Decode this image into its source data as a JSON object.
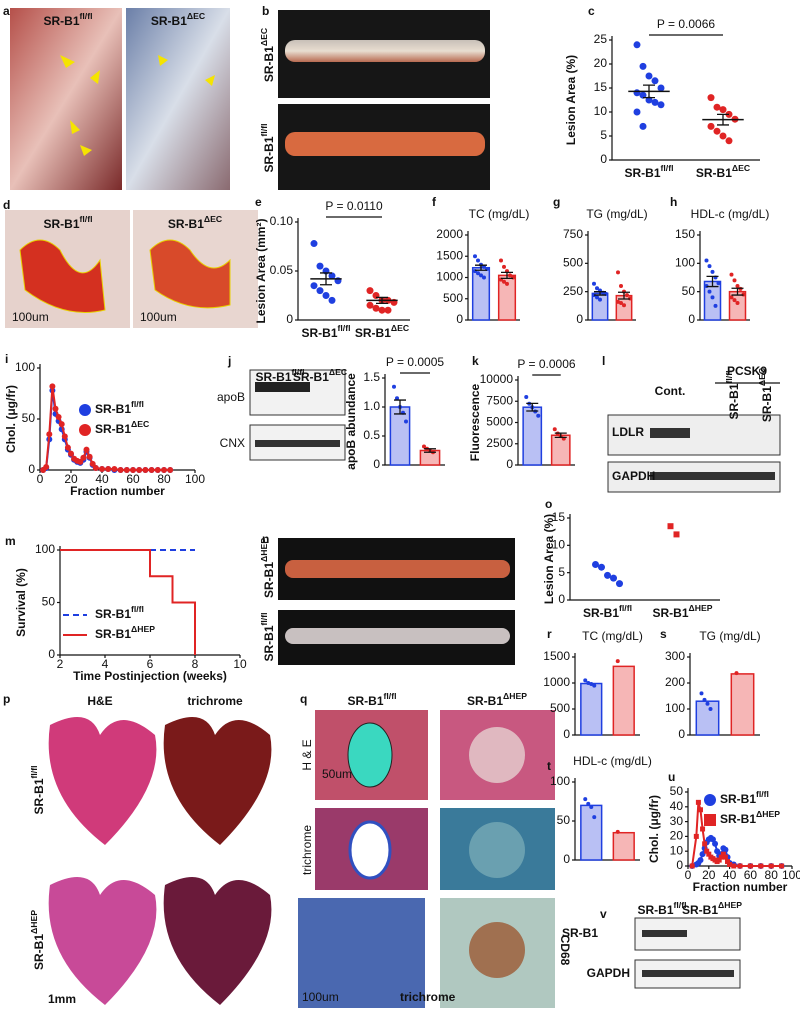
{
  "panels": {
    "a": {
      "panel": "a",
      "left": {
        "base": "SR-B1",
        "sup": "fl/fl"
      },
      "right": {
        "base": "SR-B1",
        "sup": "ΔEC"
      }
    },
    "b": {
      "panel": "b",
      "top": {
        "base": "SR-B1",
        "sup": "ΔEC"
      },
      "bottom": {
        "base": "SR-B1",
        "sup": "fl/fl"
      }
    },
    "d": {
      "panel": "d",
      "left": {
        "base": "SR-B1",
        "sup": "fl/fl"
      },
      "right": {
        "base": "SR-B1",
        "sup": "ΔEC"
      },
      "scale_left": "100um",
      "scale_right": "100um"
    },
    "j": {
      "panel": "j",
      "lanes": [
        {
          "base": "SR-B1",
          "sup": "fl/fl"
        },
        {
          "base": "SR-B1",
          "sup": "ΔEC"
        }
      ],
      "rows": [
        "apoB",
        "CNX"
      ]
    },
    "l": {
      "panel": "l",
      "group": "PCSK9",
      "lanes": [
        "Cont.",
        {
          "base": "SR-B1",
          "sup": "fl/fl"
        },
        {
          "base": "SR-B1",
          "sup": "ΔEC"
        }
      ],
      "rows": [
        "LDLR",
        "GAPDH"
      ]
    },
    "n": {
      "panel": "n",
      "top": {
        "base": "SR-B1",
        "sup": "ΔHEP"
      },
      "bottom": {
        "base": "SR-B1",
        "sup": "fl/fl"
      }
    },
    "p": {
      "panel": "p",
      "cols": [
        "H&E",
        "trichrome"
      ],
      "rows": [
        {
          "base": "SR-B1",
          "sup": "fl/fl"
        },
        {
          "base": "SR-B1",
          "sup": "ΔHEP"
        }
      ],
      "scale": "1mm"
    },
    "q": {
      "panel": "q",
      "cols": [
        {
          "base": "SR-B1",
          "sup": "fl/fl"
        },
        {
          "base": "SR-B1",
          "sup": "ΔHEP"
        }
      ],
      "rows": [
        "H & E",
        "trichrome"
      ],
      "scale": "50um",
      "side": "CD68",
      "inset_scale": "100um",
      "inset_label": "trichrome"
    },
    "v": {
      "panel": "v",
      "lanes": [
        {
          "base": "SR-B1",
          "sup": "fl/fl"
        },
        {
          "base": "SR-B1",
          "sup": "ΔHEP"
        }
      ],
      "rows": [
        "SR-B1",
        "GAPDH"
      ]
    }
  },
  "chart_data": [
    {
      "panel": "c",
      "type": "dot",
      "ylabel": "Lesion Area (%)",
      "annotation": "P = 0.0066",
      "categories": [
        {
          "base": "SR-B1",
          "sup": "fl/fl"
        },
        {
          "base": "SR-B1",
          "sup": "ΔEC"
        }
      ],
      "groups": [
        {
          "color": "#1f3fe0",
          "points": [
            24,
            19.5,
            17.5,
            16.5,
            15,
            14,
            13.5,
            12.5,
            12,
            11.5,
            10,
            7
          ],
          "mean": 14.3,
          "error": 1.3
        },
        {
          "color": "#e02424",
          "points": [
            13,
            11,
            10.5,
            9.5,
            8.5,
            7,
            6,
            5,
            4
          ],
          "mean": 8.4,
          "error": 1.1
        }
      ],
      "ylim": [
        0,
        25
      ],
      "yticks": [
        0,
        5,
        10,
        15,
        20,
        25
      ]
    },
    {
      "panel": "e",
      "type": "dot",
      "ylabel": "Lesion Area (mm²)",
      "annotation": "P = 0.0110",
      "categories": [
        {
          "base": "SR-B1",
          "sup": "fl/fl"
        },
        {
          "base": "SR-B1",
          "sup": "ΔEC"
        }
      ],
      "groups": [
        {
          "color": "#1f3fe0",
          "points": [
            0.078,
            0.055,
            0.05,
            0.045,
            0.04,
            0.035,
            0.03,
            0.025,
            0.02
          ],
          "mean": 0.042,
          "error": 0.006
        },
        {
          "color": "#e02424",
          "points": [
            0.03,
            0.025,
            0.02,
            0.02,
            0.018,
            0.015,
            0.012,
            0.01,
            0.01
          ],
          "mean": 0.02,
          "error": 0.003
        }
      ],
      "ylim": [
        0,
        0.1
      ],
      "yticks": [
        0,
        0.05,
        {
          "value": 0.1,
          "label": "0.10"
        }
      ]
    },
    {
      "panel": "f",
      "type": "bar",
      "title": "TC (mg/dL)",
      "groups": [
        {
          "color": "#1f3fe0",
          "fill": "#b9c0f4",
          "points": [
            1500,
            1400,
            1300,
            1250,
            1200,
            1150,
            1100,
            1050,
            1000
          ],
          "mean": 1230,
          "error": 60
        },
        {
          "color": "#e02424",
          "fill": "#f6b6b6",
          "points": [
            1400,
            1250,
            1150,
            1050,
            1000,
            950,
            900,
            850
          ],
          "mean": 1050,
          "error": 70
        }
      ],
      "ylim": [
        0,
        2000
      ],
      "yticks": [
        0,
        500,
        1000,
        1500,
        2000
      ]
    },
    {
      "panel": "g",
      "type": "bar",
      "title": "TG (mg/dL)",
      "groups": [
        {
          "color": "#1f3fe0",
          "fill": "#b9c0f4",
          "points": [
            320,
            280,
            260,
            240,
            230,
            220,
            200,
            180
          ],
          "mean": 235,
          "error": 15
        },
        {
          "color": "#e02424",
          "fill": "#f6b6b6",
          "points": [
            420,
            300,
            250,
            220,
            190,
            160,
            150,
            130
          ],
          "mean": 215,
          "error": 30
        }
      ],
      "ylim": [
        0,
        750
      ],
      "yticks": [
        0,
        250,
        500,
        750
      ]
    },
    {
      "panel": "h",
      "type": "bar",
      "title": "HDL-c (mg/dL)",
      "groups": [
        {
          "color": "#1f3fe0",
          "fill": "#b9c0f4",
          "points": [
            105,
            95,
            85,
            75,
            65,
            60,
            50,
            40,
            25
          ],
          "mean": 68,
          "error": 9
        },
        {
          "color": "#e02424",
          "fill": "#f6b6b6",
          "points": [
            80,
            70,
            60,
            55,
            45,
            40,
            35,
            30
          ],
          "mean": 50,
          "error": 6
        }
      ],
      "ylim": [
        0,
        150
      ],
      "yticks": [
        0,
        50,
        100,
        150
      ]
    },
    {
      "panel": "i",
      "type": "line",
      "ylabel": "Chol. (μg/fr)",
      "xlabel": "Fraction number",
      "xlim": [
        0,
        100
      ],
      "xticks": [
        0,
        20,
        40,
        60,
        80,
        100
      ],
      "ylim": [
        0,
        100
      ],
      "yticks": [
        0,
        50,
        100
      ],
      "x": [
        2,
        4,
        6,
        8,
        10,
        12,
        14,
        16,
        18,
        20,
        22,
        24,
        26,
        28,
        30,
        32,
        34,
        36,
        40,
        44,
        48,
        52,
        56,
        60,
        64,
        68,
        72,
        76,
        80,
        84
      ],
      "series": [
        {
          "name": {
            "base": "SR-B1",
            "sup": "fl/fl"
          },
          "color": "#1f3fe0",
          "marker": "circle",
          "values": [
            0,
            2,
            30,
            78,
            55,
            48,
            40,
            30,
            20,
            15,
            10,
            8,
            7,
            10,
            18,
            12,
            5,
            2,
            1,
            1,
            0,
            0,
            0,
            0,
            0,
            0,
            0,
            0,
            0,
            0
          ]
        },
        {
          "name": {
            "base": "SR-B1",
            "sup": "ΔEC"
          },
          "color": "#e02424",
          "marker": "circle",
          "values": [
            0,
            3,
            35,
            82,
            60,
            52,
            45,
            33,
            22,
            16,
            11,
            9,
            8,
            12,
            20,
            13,
            6,
            2,
            1,
            1,
            1,
            0,
            0,
            0,
            0,
            0,
            0,
            0,
            0,
            0
          ]
        }
      ]
    },
    {
      "type": "bar",
      "ylabel": "apoB abundance",
      "annotation": "P = 0.0005",
      "groups": [
        {
          "color": "#1f3fe0",
          "fill": "#b9c0f4",
          "points": [
            1.35,
            1.15,
            1.0,
            0.9,
            0.75
          ],
          "mean": 1.0,
          "error": 0.12
        },
        {
          "color": "#e02424",
          "fill": "#f6b6b6",
          "points": [
            0.32,
            0.28,
            0.25,
            0.22
          ],
          "mean": 0.25,
          "error": 0.03
        }
      ],
      "ylim": [
        0,
        1.5
      ],
      "yticks": [
        0,
        0.5,
        {
          "value": 1,
          "label": "1.0"
        },
        1.5
      ]
    },
    {
      "panel": "k",
      "type": "bar",
      "ylabel": "Fluorescence",
      "annotation": "P = 0.0006",
      "groups": [
        {
          "color": "#1f3fe0",
          "fill": "#b9c0f4",
          "points": [
            8000,
            7200,
            6800,
            6300,
            5800
          ],
          "mean": 6800,
          "error": 450
        },
        {
          "color": "#e02424",
          "fill": "#f6b6b6",
          "points": [
            4200,
            3700,
            3400,
            3100
          ],
          "mean": 3500,
          "error": 250
        }
      ],
      "ylim": [
        0,
        10000
      ],
      "yticks": [
        0,
        2500,
        5000,
        7500,
        10000
      ]
    },
    {
      "panel": "m",
      "type": "step",
      "ylabel": "Survival (%)",
      "xlabel": "Time Postinjection (weeks)",
      "xlim": [
        2,
        10
      ],
      "xticks": [
        2,
        4,
        6,
        8,
        10
      ],
      "ylim": [
        0,
        100
      ],
      "yticks": [
        0,
        50,
        100
      ],
      "x": [
        2,
        6,
        7,
        8
      ],
      "series": [
        {
          "name": {
            "base": "SR-B1",
            "sup": "fl/fl"
          },
          "color": "#1f3fe0",
          "dash": true,
          "values": [
            100,
            100,
            100,
            100
          ]
        },
        {
          "name": {
            "base": "SR-B1",
            "sup": "ΔHEP"
          },
          "color": "#e02424",
          "dash": false,
          "values": [
            100,
            75,
            50,
            0
          ]
        }
      ]
    },
    {
      "panel": "o",
      "type": "dot",
      "ylabel": "Lesion Area (%)",
      "categories": [
        {
          "base": "SR-B1",
          "sup": "fl/fl"
        },
        {
          "base": "SR-B1",
          "sup": "ΔHEP"
        }
      ],
      "groups": [
        {
          "color": "#1f3fe0",
          "marker": "circle",
          "points": [
            6.5,
            6,
            4.5,
            4,
            3
          ]
        },
        {
          "color": "#e02424",
          "marker": "square",
          "points": [
            13.5,
            12
          ]
        }
      ],
      "ylim": [
        0,
        15
      ],
      "yticks": [
        0,
        5,
        10,
        15
      ]
    },
    {
      "panel": "r",
      "type": "bar",
      "title": "TC (mg/dL)",
      "groups": [
        {
          "color": "#1f3fe0",
          "fill": "#b9c0f4",
          "points": [
            1050,
            1000,
            980,
            950
          ],
          "mean": 990
        },
        {
          "color": "#e02424",
          "fill": "#f6b6b6",
          "points": [
            1420
          ],
          "mean": 1320
        }
      ],
      "ylim": [
        0,
        1500
      ],
      "yticks": [
        0,
        500,
        1000,
        1500
      ]
    },
    {
      "panel": "s",
      "type": "bar",
      "title": "TG (mg/dL)",
      "groups": [
        {
          "color": "#1f3fe0",
          "fill": "#b9c0f4",
          "points": [
            160,
            135,
            120,
            100
          ],
          "mean": 130
        },
        {
          "color": "#e02424",
          "fill": "#f6b6b6",
          "points": [
            238
          ],
          "mean": 235
        }
      ],
      "ylim": [
        0,
        300
      ],
      "yticks": [
        0,
        100,
        200,
        300
      ]
    },
    {
      "panel": "t",
      "type": "bar",
      "title": "HDL-c (mg/dL)",
      "groups": [
        {
          "color": "#1f3fe0",
          "fill": "#b9c0f4",
          "points": [
            78,
            72,
            68,
            55
          ],
          "mean": 70
        },
        {
          "color": "#e02424",
          "fill": "#f6b6b6",
          "points": [
            36
          ],
          "mean": 35
        }
      ],
      "ylim": [
        0,
        100
      ],
      "yticks": [
        0,
        50,
        100
      ]
    },
    {
      "panel": "u",
      "type": "line",
      "ylabel": "Chol. (μg/fr)",
      "xlabel": "Fraction number",
      "xlim": [
        0,
        100
      ],
      "xticks": [
        0,
        20,
        40,
        60,
        80,
        100
      ],
      "ylim": [
        0,
        50
      ],
      "yticks": [
        0,
        10,
        20,
        30,
        40,
        50
      ],
      "x": [
        4,
        8,
        10,
        12,
        14,
        16,
        18,
        20,
        22,
        24,
        26,
        28,
        30,
        32,
        34,
        36,
        38,
        40,
        44,
        50,
        60,
        70,
        80,
        90
      ],
      "series": [
        {
          "name": {
            "base": "SR-B1",
            "sup": "fl/fl"
          },
          "color": "#1f3fe0",
          "marker": "circle",
          "values": [
            0,
            1,
            2,
            4,
            8,
            12,
            16,
            18,
            19,
            18,
            15,
            10,
            7,
            8,
            12,
            11,
            6,
            2,
            1,
            0,
            0,
            0,
            0,
            0
          ]
        },
        {
          "name": {
            "base": "SR-B1",
            "sup": "ΔHEP"
          },
          "color": "#e02424",
          "marker": "square",
          "values": [
            0,
            20,
            43,
            38,
            25,
            15,
            10,
            8,
            6,
            5,
            4,
            3,
            4,
            6,
            8,
            6,
            3,
            1,
            0,
            0,
            0,
            0,
            0,
            0
          ]
        }
      ]
    }
  ]
}
